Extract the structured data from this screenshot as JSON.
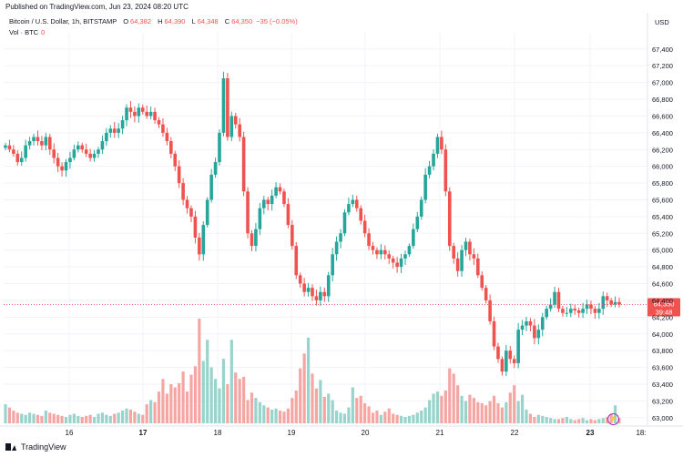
{
  "header": {
    "published": "Published on TradingView.com, Jun 23, 2024 08:20 UTC",
    "symbol": "Bitcoin / U.S. Dollar, 1h, BITSTAMP",
    "open_key": "O",
    "open": "64,382",
    "high_key": "H",
    "high": "64,390",
    "low_key": "L",
    "low": "64,348",
    "close_key": "C",
    "close": "64,350",
    "change": "−35 (−0.05%)",
    "vol_label": "Vol · BTC",
    "vol_value": "0",
    "currency": "USD"
  },
  "price_tag": {
    "price": "64,350",
    "countdown": "39:48"
  },
  "footer": {
    "brand": "TradingView"
  },
  "colors": {
    "up": "#26a69a",
    "down": "#ef5350",
    "up_vol": "#98d3cc",
    "down_vol": "#f5a6a3",
    "price_line": "#ef5350"
  },
  "chart_data": {
    "type": "candlestick",
    "title": "Bitcoin / U.S. Dollar, 1h, BITSTAMP",
    "currency": "USD",
    "y_ticks": [
      63000,
      63200,
      63400,
      63600,
      63800,
      64000,
      64200,
      64400,
      64600,
      64800,
      65000,
      65200,
      65400,
      65600,
      65800,
      66000,
      66200,
      66400,
      66600,
      66800,
      67000,
      67200,
      67400
    ],
    "y_range": [
      62900,
      67550
    ],
    "x_labels": [
      "16",
      "17",
      "18",
      "19",
      "20",
      "21",
      "22",
      "23",
      "18:"
    ],
    "last_price": 64350,
    "closes": [
      66250,
      66200,
      66150,
      66050,
      66100,
      66250,
      66300,
      66350,
      66300,
      66250,
      66350,
      66200,
      66100,
      66000,
      65950,
      66050,
      66100,
      66200,
      66250,
      66200,
      66150,
      66100,
      66150,
      66200,
      66300,
      66400,
      66450,
      66400,
      66450,
      66550,
      66700,
      66650,
      66600,
      66700,
      66650,
      66600,
      66650,
      66550,
      66500,
      66400,
      66300,
      66150,
      66000,
      65800,
      65600,
      65500,
      65400,
      65150,
      64950,
      65300,
      65600,
      65900,
      66050,
      66400,
      67050,
      66350,
      66600,
      66500,
      66350,
      65700,
      65200,
      65050,
      65250,
      65500,
      65600,
      65550,
      65650,
      65750,
      65700,
      65550,
      65300,
      65050,
      64700,
      64600,
      64500,
      64550,
      64450,
      64400,
      64500,
      64450,
      64700,
      64950,
      65100,
      65200,
      65450,
      65550,
      65600,
      65500,
      65350,
      65200,
      65050,
      65000,
      64950,
      65000,
      64950,
      64900,
      64850,
      64800,
      64900,
      64950,
      65050,
      65250,
      65400,
      65600,
      65900,
      66000,
      66150,
      66350,
      66200,
      65700,
      65050,
      64900,
      64750,
      65000,
      65100,
      64950,
      64900,
      64700,
      64550,
      64400,
      64150,
      63850,
      63700,
      63550,
      63800,
      63700,
      63650,
      64050,
      64100,
      64150,
      64100,
      63950,
      64050,
      64200,
      64300,
      64350,
      64500,
      64300,
      64250,
      64250,
      64300,
      64280,
      64250,
      64300,
      64350,
      64300,
      64250,
      64300,
      64450,
      64400,
      64350,
      64380,
      64350
    ],
    "volumes": [
      18,
      15,
      12,
      10,
      9,
      8,
      10,
      9,
      8,
      7,
      12,
      10,
      9,
      8,
      7,
      6,
      8,
      9,
      7,
      6,
      7,
      8,
      6,
      9,
      10,
      8,
      7,
      9,
      10,
      12,
      14,
      13,
      11,
      9,
      8,
      18,
      22,
      20,
      30,
      42,
      28,
      37,
      34,
      38,
      49,
      30,
      46,
      54,
      99,
      59,
      79,
      53,
      42,
      33,
      61,
      37,
      79,
      48,
      42,
      44,
      22,
      29,
      24,
      20,
      17,
      15,
      13,
      14,
      12,
      11,
      14,
      24,
      31,
      52,
      66,
      81,
      47,
      33,
      41,
      25,
      28,
      22,
      12,
      10,
      9,
      15,
      34,
      24,
      26,
      19,
      16,
      10,
      12,
      8,
      11,
      14,
      9,
      8,
      7,
      6,
      7,
      8,
      10,
      12,
      15,
      22,
      28,
      30,
      26,
      31,
      52,
      47,
      36,
      26,
      21,
      27,
      24,
      20,
      19,
      17,
      21,
      26,
      19,
      15,
      20,
      29,
      36,
      21,
      27,
      13,
      9,
      6,
      8,
      7,
      6,
      5,
      4,
      4,
      5,
      6,
      4,
      3,
      4,
      5,
      3,
      4,
      3,
      4,
      5,
      6,
      9,
      17,
      5
    ]
  }
}
